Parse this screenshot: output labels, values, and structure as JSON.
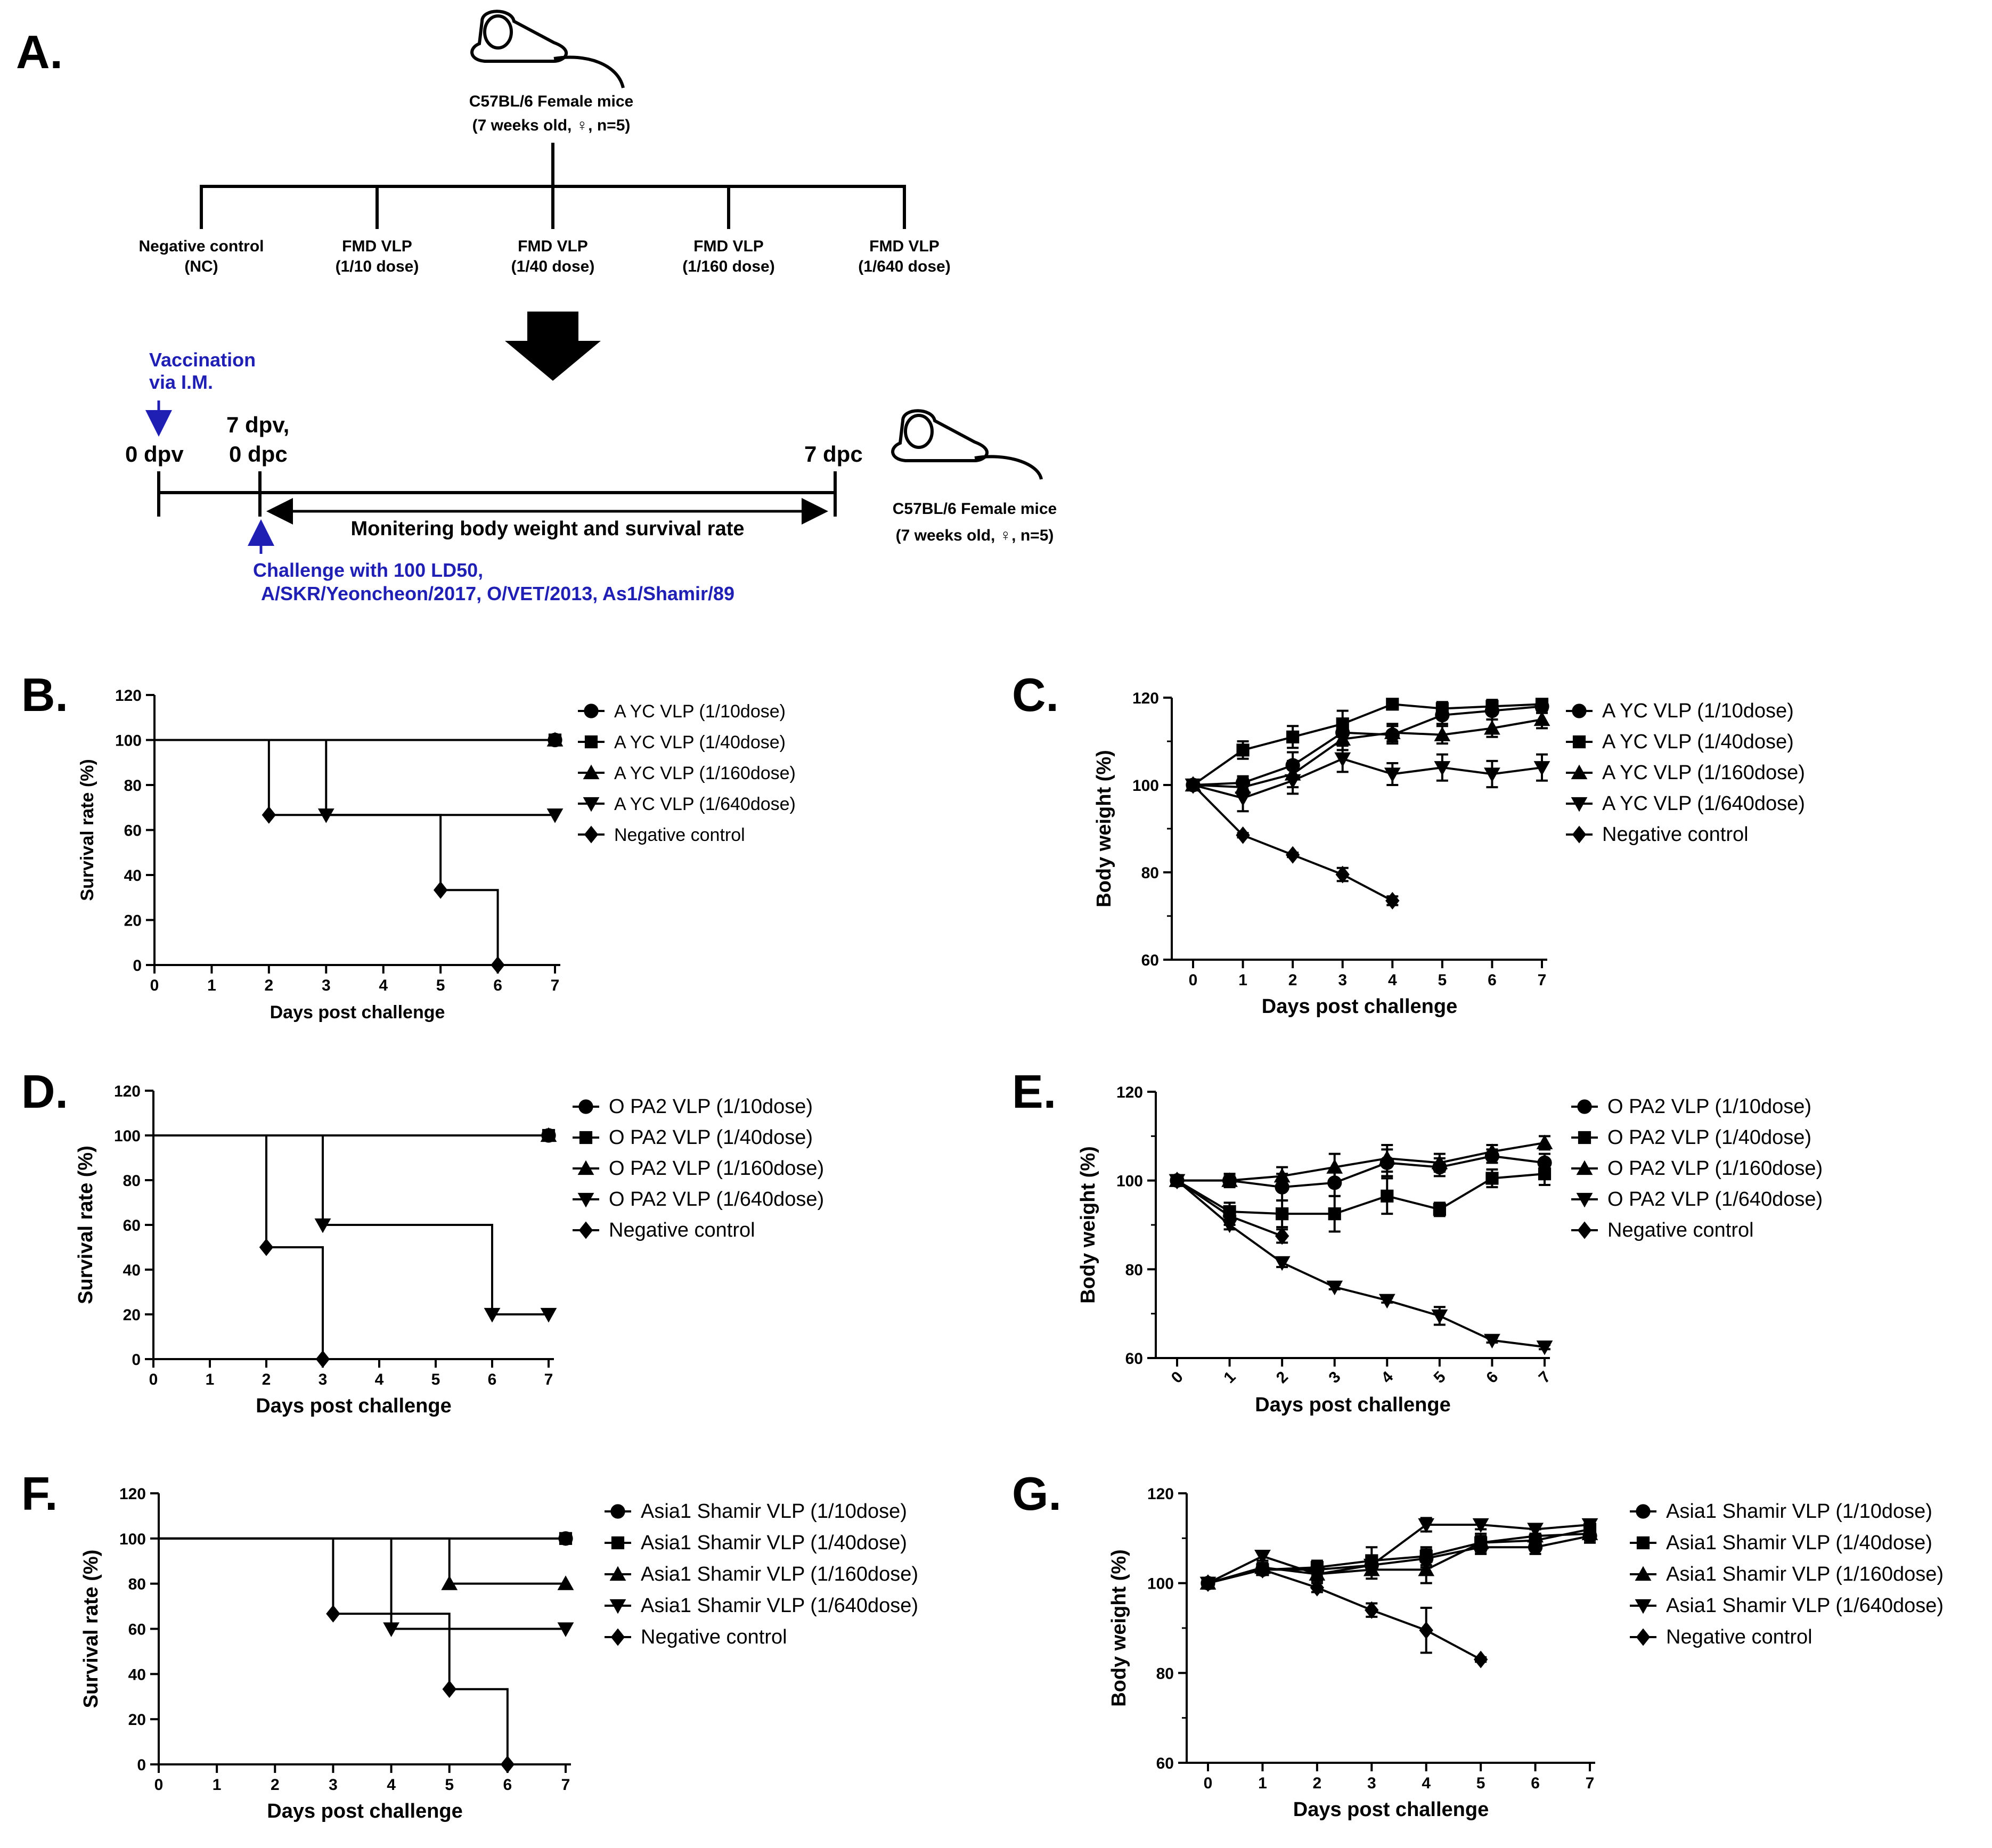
{
  "panel_a": {
    "letter": "A.",
    "mice_top": {
      "line1": "C57BL/6 Female mice",
      "line2": "(7 weeks old, ♀, n=5)"
    },
    "groups": [
      {
        "line1": "Negative control",
        "line2": "(NC)"
      },
      {
        "line1": "FMD VLP",
        "line2": "(1/10 dose)"
      },
      {
        "line1": "FMD VLP",
        "line2": "(1/40 dose)"
      },
      {
        "line1": "FMD VLP",
        "line2": "(1/160 dose)"
      },
      {
        "line1": "FMD VLP",
        "line2": "(1/640 dose)"
      }
    ],
    "vaccination": {
      "line1": "Vaccination",
      "line2": "via I.M."
    },
    "timeline": {
      "t0": "0 dpv",
      "t7a": "7 dpv,",
      "t7b": "0 dpc",
      "t7dpc": "7 dpc",
      "monitor": "Monitering body weight and survival rate"
    },
    "challenge": {
      "line1": "Challenge with 100  LD50,",
      "line2": "A/SKR/Yeoncheon/2017,  O/VET/2013,  As1/Shamir/89"
    },
    "mice_right": {
      "line1": "C57BL/6 Female mice",
      "line2": "(7 weeks old, ♀, n=5)"
    },
    "colors": {
      "accent_blue": "#1f1fb4",
      "ink": "#000000"
    }
  },
  "chart_data": [
    {
      "panel": "B.",
      "type": "line",
      "step": true,
      "xlabel": "Days post challenge",
      "ylabel": "Survival rate (%)",
      "xlim": [
        0,
        7
      ],
      "ylim": [
        0,
        120
      ],
      "xticks": [
        0,
        1,
        2,
        3,
        4,
        5,
        6,
        7
      ],
      "yticks": [
        0,
        20,
        40,
        60,
        80,
        100,
        120
      ],
      "legend_position": "right",
      "series": [
        {
          "name": "A YC VLP (1/10dose)",
          "marker": "circle",
          "points": [
            [
              0,
              100
            ],
            [
              7,
              100
            ]
          ]
        },
        {
          "name": "A YC VLP (1/40dose)",
          "marker": "square",
          "points": [
            [
              0,
              100
            ],
            [
              7,
              100
            ]
          ]
        },
        {
          "name": "A YC VLP (1/160dose)",
          "marker": "triangle",
          "points": [
            [
              0,
              100
            ],
            [
              7,
              100
            ]
          ]
        },
        {
          "name": "A YC VLP (1/640dose)",
          "marker": "triangle-down",
          "points": [
            [
              0,
              100
            ],
            [
              3,
              66.7
            ],
            [
              7,
              66.7
            ]
          ]
        },
        {
          "name": "Negative control",
          "marker": "diamond",
          "points": [
            [
              0,
              100
            ],
            [
              2,
              66.7
            ],
            [
              5,
              33.3
            ],
            [
              6,
              0
            ]
          ]
        }
      ]
    },
    {
      "panel": "C.",
      "type": "line",
      "xlabel": "Days post challenge",
      "ylabel": "Body weight (%)",
      "xlim": [
        0,
        7
      ],
      "ylim": [
        60,
        120
      ],
      "xticks": [
        0,
        1,
        2,
        3,
        4,
        5,
        6,
        7
      ],
      "yticks": [
        60,
        80,
        100,
        120
      ],
      "legend_position": "right",
      "series": [
        {
          "name": "A YC VLP (1/10dose)",
          "marker": "circle",
          "x": [
            0,
            1,
            2,
            3,
            4,
            5,
            6,
            7
          ],
          "y": [
            100,
            100.5,
            104.5,
            112,
            111.5,
            116,
            117,
            118
          ],
          "err": [
            0,
            1.5,
            3,
            2.5,
            2,
            2,
            2,
            1.5
          ]
        },
        {
          "name": "A YC VLP (1/40dose)",
          "marker": "square",
          "x": [
            0,
            1,
            2,
            3,
            4,
            5,
            6,
            7
          ],
          "y": [
            100,
            108,
            111,
            114,
            118.5,
            117.5,
            118,
            118.5
          ],
          "err": [
            0,
            2,
            2.5,
            3,
            1,
            1.5,
            1.5,
            1
          ]
        },
        {
          "name": "A YC VLP (1/160dose)",
          "marker": "triangle",
          "x": [
            0,
            1,
            2,
            3,
            4,
            5,
            6,
            7
          ],
          "y": [
            100,
            99.5,
            102.5,
            110.5,
            112,
            111.5,
            113,
            115
          ],
          "err": [
            0,
            2,
            3,
            2.5,
            2,
            2,
            2,
            2
          ]
        },
        {
          "name": "A YC VLP (1/640dose)",
          "marker": "triangle-down",
          "x": [
            0,
            1,
            2,
            3,
            4,
            5,
            6,
            7
          ],
          "y": [
            100,
            97,
            101,
            106,
            102.5,
            104,
            102.5,
            104
          ],
          "err": [
            0,
            3,
            3,
            3,
            2.5,
            3,
            3,
            3
          ]
        },
        {
          "name": "Negative control",
          "marker": "diamond",
          "x": [
            0,
            1,
            2,
            3,
            4
          ],
          "y": [
            100,
            88.5,
            84,
            79.5,
            73.5
          ],
          "err": [
            0,
            0.5,
            0.5,
            1.5,
            1
          ]
        }
      ]
    },
    {
      "panel": "D.",
      "type": "line",
      "step": true,
      "xlabel": "Days post challenge",
      "ylabel": "Survival rate (%)",
      "xlim": [
        0,
        7
      ],
      "ylim": [
        0,
        120
      ],
      "xticks": [
        0,
        1,
        2,
        3,
        4,
        5,
        6,
        7
      ],
      "yticks": [
        0,
        20,
        40,
        60,
        80,
        100,
        120
      ],
      "legend_position": "right",
      "series": [
        {
          "name": "O PA2 VLP (1/10dose)",
          "marker": "circle",
          "points": [
            [
              0,
              100
            ],
            [
              7,
              100
            ]
          ]
        },
        {
          "name": "O PA2 VLP (1/40dose)",
          "marker": "square",
          "points": [
            [
              0,
              100
            ],
            [
              7,
              100
            ]
          ]
        },
        {
          "name": "O PA2 VLP (1/160dose)",
          "marker": "triangle",
          "points": [
            [
              0,
              100
            ],
            [
              7,
              100
            ]
          ]
        },
        {
          "name": "O PA2 VLP (1/640dose)",
          "marker": "triangle-down",
          "points": [
            [
              0,
              100
            ],
            [
              3,
              60
            ],
            [
              6,
              20
            ],
            [
              7,
              20
            ]
          ]
        },
        {
          "name": "Negative control",
          "marker": "diamond",
          "points": [
            [
              0,
              100
            ],
            [
              2,
              50
            ],
            [
              3,
              0
            ]
          ]
        }
      ]
    },
    {
      "panel": "E.",
      "type": "line",
      "xlabel": "Days post challenge",
      "ylabel": "Body weight (%)",
      "xlim": [
        0,
        7
      ],
      "ylim": [
        60,
        120
      ],
      "xticks": [
        0,
        1,
        2,
        3,
        4,
        5,
        6,
        7
      ],
      "yticks": [
        60,
        80,
        100,
        120
      ],
      "xtick_rotation": -45,
      "legend_position": "right",
      "series": [
        {
          "name": "O PA2 VLP (1/10dose)",
          "marker": "circle",
          "x": [
            0,
            1,
            2,
            3,
            4,
            5,
            6,
            7
          ],
          "y": [
            100,
            100,
            98.5,
            99.5,
            104,
            103,
            105.5,
            104
          ],
          "err": [
            0,
            1,
            3,
            3,
            3,
            2,
            1.5,
            2
          ]
        },
        {
          "name": "O PA2 VLP (1/40dose)",
          "marker": "square",
          "x": [
            0,
            1,
            2,
            3,
            4,
            5,
            6,
            7
          ],
          "y": [
            100,
            93,
            92.5,
            92.5,
            96.5,
            93.5,
            100.5,
            101.5
          ],
          "err": [
            0,
            2,
            3,
            4,
            4,
            1.5,
            2,
            2.5
          ]
        },
        {
          "name": "O PA2 VLP (1/160dose)",
          "marker": "triangle",
          "x": [
            0,
            1,
            2,
            3,
            4,
            5,
            6,
            7
          ],
          "y": [
            100,
            100,
            101,
            103,
            105,
            104,
            106.5,
            108.5
          ],
          "err": [
            0,
            1.5,
            2,
            3,
            3,
            2,
            1.5,
            1.5
          ]
        },
        {
          "name": "O PA2 VLP (1/640dose)",
          "marker": "triangle-down",
          "x": [
            0,
            1,
            2,
            3,
            4,
            5,
            6,
            7
          ],
          "y": [
            100,
            90,
            81.5,
            76,
            73,
            69.5,
            64,
            62.5
          ],
          "err": [
            0,
            1,
            1,
            0.5,
            0.5,
            2,
            0.5,
            0.5
          ]
        },
        {
          "name": "Negative control",
          "marker": "diamond",
          "x": [
            0,
            1,
            2
          ],
          "y": [
            100,
            92,
            87.5
          ],
          "err": [
            0,
            2,
            1.5
          ]
        }
      ]
    },
    {
      "panel": "F.",
      "type": "line",
      "step": true,
      "xlabel": "Days post challenge",
      "ylabel": "Survival rate (%)",
      "xlim": [
        0,
        7
      ],
      "ylim": [
        0,
        120
      ],
      "xticks": [
        0,
        1,
        2,
        3,
        4,
        5,
        6,
        7
      ],
      "yticks": [
        0,
        20,
        40,
        60,
        80,
        100,
        120
      ],
      "legend_position": "right",
      "series": [
        {
          "name": "Asia1 Shamir VLP (1/10dose)",
          "marker": "circle",
          "points": [
            [
              0,
              100
            ],
            [
              7,
              100
            ]
          ]
        },
        {
          "name": "Asia1 Shamir VLP (1/40dose)",
          "marker": "square",
          "points": [
            [
              0,
              100
            ],
            [
              7,
              100
            ]
          ]
        },
        {
          "name": "Asia1 Shamir VLP (1/160dose)",
          "marker": "triangle",
          "points": [
            [
              0,
              100
            ],
            [
              5,
              80
            ],
            [
              7,
              80
            ]
          ]
        },
        {
          "name": "Asia1 Shamir VLP (1/640dose)",
          "marker": "triangle-down",
          "points": [
            [
              0,
              100
            ],
            [
              4,
              60
            ],
            [
              7,
              60
            ]
          ]
        },
        {
          "name": "Negative control",
          "marker": "diamond",
          "points": [
            [
              0,
              100
            ],
            [
              3,
              66.7
            ],
            [
              5,
              33.3
            ],
            [
              6,
              0
            ]
          ]
        }
      ]
    },
    {
      "panel": "G.",
      "type": "line",
      "xlabel": "Days post challenge",
      "ylabel": "Body weight (%)",
      "xlim": [
        0,
        7
      ],
      "ylim": [
        60,
        120
      ],
      "xticks": [
        0,
        1,
        2,
        3,
        4,
        5,
        6,
        7
      ],
      "yticks": [
        60,
        80,
        100,
        120
      ],
      "legend_position": "right",
      "series": [
        {
          "name": "Asia1 Shamir VLP (1/10dose)",
          "marker": "circle",
          "x": [
            0,
            1,
            2,
            3,
            4,
            5,
            6,
            7
          ],
          "y": [
            100,
            103,
            103,
            104,
            105.5,
            108,
            108,
            110.5
          ],
          "err": [
            0,
            1,
            1.5,
            2,
            2,
            1.5,
            1.5,
            1.5
          ]
        },
        {
          "name": "Asia1 Shamir VLP (1/40dose)",
          "marker": "square",
          "x": [
            0,
            1,
            2,
            3,
            4,
            5,
            6,
            7
          ],
          "y": [
            100,
            103,
            103.5,
            105,
            106,
            109,
            109.5,
            112
          ],
          "err": [
            0,
            1,
            1.5,
            3,
            2,
            1.5,
            1.5,
            1.5
          ]
        },
        {
          "name": "Asia1 Shamir VLP (1/160dose)",
          "marker": "triangle",
          "x": [
            0,
            1,
            2,
            3,
            4,
            5,
            6,
            7
          ],
          "y": [
            100,
            103.5,
            102,
            103,
            103,
            109,
            110.5,
            111
          ],
          "err": [
            0,
            1,
            1.5,
            2,
            3,
            2,
            1.5,
            1.5
          ]
        },
        {
          "name": "Asia1 Shamir VLP (1/640dose)",
          "marker": "triangle-down",
          "x": [
            0,
            1,
            2,
            3,
            4,
            5,
            6,
            7
          ],
          "y": [
            100,
            106,
            102,
            104,
            113,
            113,
            112,
            113
          ],
          "err": [
            0,
            1,
            1.5,
            2,
            1.5,
            1,
            1,
            1
          ]
        },
        {
          "name": "Negative control",
          "marker": "diamond",
          "x": [
            0,
            1,
            2,
            3,
            4,
            5
          ],
          "y": [
            100,
            103,
            99,
            94,
            89.5,
            83
          ],
          "err": [
            0,
            1,
            1,
            1.5,
            5,
            0.5
          ]
        }
      ]
    }
  ]
}
